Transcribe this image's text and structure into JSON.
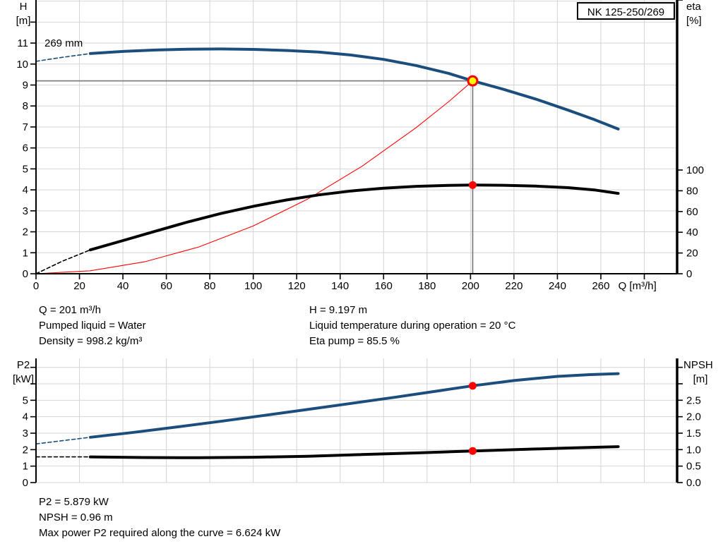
{
  "model": "NK 125-250/269",
  "impeller_label": "269 mm",
  "colors": {
    "blue": "#1b4d7d",
    "black": "#000000",
    "red": "#ff0000",
    "yellow": "#ffff00",
    "grid": "#d4d4d4",
    "crosshair": "#7f7f7f",
    "axis": "#000000"
  },
  "info_top": {
    "left": [
      "Q = 201 m³/h",
      "Pumped liquid = Water",
      "Density = 998.2 kg/m³"
    ],
    "right": [
      "H = 9.197 m",
      "Liquid temperature during operation = 20 °C",
      "Eta pump = 85.5 %"
    ]
  },
  "info_bottom": [
    "P2 = 5.879 kW",
    "NPSH = 0.96 m",
    "Max power P2 required along the curve = 6.624 kW"
  ],
  "chart_data": [
    {
      "type": "line",
      "name": "head-efficiency-chart",
      "title": "NK 125-250/269",
      "x_axis": {
        "label": "Q [m³/h]",
        "range": [
          0,
          295
        ],
        "ticks": [
          0,
          20,
          40,
          60,
          80,
          100,
          120,
          140,
          160,
          180,
          200,
          220,
          240,
          260
        ],
        "unlabeled_ticks": [
          280
        ],
        "grid_step": 20
      },
      "y_left": {
        "label_lines": [
          "H",
          "[m]"
        ],
        "range": [
          0,
          13.05
        ],
        "ticks": [
          0,
          1,
          2,
          3,
          4,
          5,
          6,
          7,
          8,
          9,
          10,
          11
        ],
        "unlabeled_ticks": [
          12
        ],
        "grid_max": 13
      },
      "y_right": {
        "label_lines": [
          "eta",
          "[%]"
        ],
        "range": [
          0,
          264
        ],
        "ticks": [
          0,
          20,
          40,
          60,
          80,
          100
        ]
      },
      "series": [
        {
          "name": "system-curve",
          "axis": "left",
          "color": "red",
          "style": "thin",
          "points": [
            [
              0,
              0
            ],
            [
              25,
              0.142
            ],
            [
              50,
              0.569
            ],
            [
              75,
              1.28
            ],
            [
              100,
              2.277
            ],
            [
              125,
              3.557
            ],
            [
              150,
              5.122
            ],
            [
              175,
              6.97
            ],
            [
              190,
              8.21
            ],
            [
              201,
              9.197
            ]
          ]
        },
        {
          "name": "efficiency-curve-extension",
          "axis": "right",
          "color": "black",
          "style": "dashed",
          "points": [
            [
              0,
              0
            ],
            [
              12,
              12
            ],
            [
              25,
              23
            ]
          ]
        },
        {
          "name": "efficiency-curve",
          "axis": "right",
          "color": "black",
          "style": "solid",
          "points": [
            [
              25,
              23
            ],
            [
              40,
              32
            ],
            [
              55,
              41
            ],
            [
              70,
              50
            ],
            [
              85,
              58
            ],
            [
              100,
              65
            ],
            [
              115,
              71
            ],
            [
              130,
              76
            ],
            [
              145,
              79.8
            ],
            [
              160,
              82.5
            ],
            [
              175,
              84.3
            ],
            [
              190,
              85.2
            ],
            [
              201,
              85.5
            ],
            [
              215,
              85.3
            ],
            [
              230,
              84.5
            ],
            [
              245,
              83
            ],
            [
              257,
              80.8
            ],
            [
              268,
              77.5
            ]
          ]
        },
        {
          "name": "head-curve-extension",
          "axis": "left",
          "color": "blue",
          "style": "dashed",
          "points": [
            [
              0,
              10.13
            ],
            [
              12,
              10.32
            ],
            [
              25,
              10.5
            ]
          ]
        },
        {
          "name": "head-curve",
          "axis": "left",
          "color": "blue",
          "style": "solid",
          "points": [
            [
              25,
              10.5
            ],
            [
              40,
              10.6
            ],
            [
              55,
              10.67
            ],
            [
              70,
              10.71
            ],
            [
              85,
              10.72
            ],
            [
              100,
              10.7
            ],
            [
              115,
              10.65
            ],
            [
              130,
              10.57
            ],
            [
              145,
              10.43
            ],
            [
              160,
              10.22
            ],
            [
              175,
              9.93
            ],
            [
              190,
              9.55
            ],
            [
              201,
              9.197
            ],
            [
              215,
              8.8
            ],
            [
              230,
              8.33
            ],
            [
              245,
              7.8
            ],
            [
              257,
              7.35
            ],
            [
              268,
              6.9
            ]
          ]
        }
      ],
      "duty_point": {
        "q": 201,
        "h": 9.197,
        "eta": 85.5
      },
      "crosshair": true
    },
    {
      "type": "line",
      "name": "power-npsh-chart",
      "x_axis": {
        "label": "",
        "range": [
          0,
          295
        ],
        "ticks": [],
        "unlabeled_ticks": [],
        "grid_step": 20
      },
      "y_left": {
        "label_lines": [
          "P2",
          "[kW]"
        ],
        "range": [
          0,
          7.55
        ],
        "ticks": [
          0,
          1,
          2,
          3,
          4,
          5
        ],
        "unlabeled_ticks": [
          6,
          7
        ],
        "grid_max": 7
      },
      "y_right": {
        "label_lines": [
          "NPSH",
          "[m]"
        ],
        "range": [
          0,
          3.77
        ],
        "ticks": [
          "0.0",
          "0.5",
          "1.0",
          "1.5",
          "2.0",
          "2.5"
        ],
        "unlabeled_ticks": [
          3,
          3.5
        ]
      },
      "series": [
        {
          "name": "npsh-curve-extension",
          "axis": "right",
          "color": "black",
          "style": "dashed",
          "points": [
            [
              0,
              0.78
            ],
            [
              25,
              0.78
            ]
          ]
        },
        {
          "name": "npsh-curve",
          "axis": "right",
          "color": "black",
          "style": "solid",
          "points": [
            [
              25,
              0.78
            ],
            [
              50,
              0.76
            ],
            [
              75,
              0.755
            ],
            [
              100,
              0.77
            ],
            [
              125,
              0.8
            ],
            [
              150,
              0.85
            ],
            [
              175,
              0.9
            ],
            [
              201,
              0.96
            ],
            [
              225,
              1.01
            ],
            [
              245,
              1.05
            ],
            [
              268,
              1.09
            ]
          ]
        },
        {
          "name": "power-curve-extension",
          "axis": "left",
          "color": "blue",
          "style": "dashed",
          "points": [
            [
              0,
              2.35
            ],
            [
              25,
              2.75
            ]
          ]
        },
        {
          "name": "power-curve",
          "axis": "left",
          "color": "blue",
          "style": "solid",
          "points": [
            [
              25,
              2.75
            ],
            [
              45,
              3.05
            ],
            [
              65,
              3.38
            ],
            [
              85,
              3.72
            ],
            [
              105,
              4.08
            ],
            [
              125,
              4.44
            ],
            [
              145,
              4.81
            ],
            [
              165,
              5.18
            ],
            [
              185,
              5.57
            ],
            [
              201,
              5.879
            ],
            [
              220,
              6.2
            ],
            [
              240,
              6.45
            ],
            [
              255,
              6.56
            ],
            [
              268,
              6.62
            ]
          ]
        }
      ],
      "duty_point": {
        "q": 201,
        "p2": 5.879,
        "npsh": 0.96
      },
      "crosshair": false
    }
  ]
}
